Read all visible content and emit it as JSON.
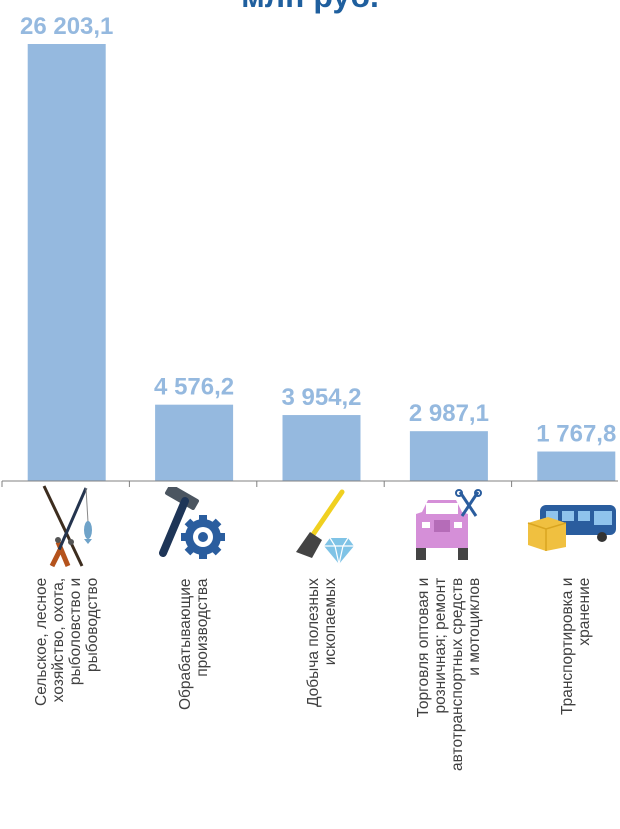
{
  "title": "млн руб.",
  "chart_data": {
    "type": "bar",
    "title": "млн руб.",
    "categories": [
      [
        "Сельское, лесное",
        "хозяйство, охота,",
        "рыболовство и",
        "рыбоводство"
      ],
      [
        "Обрабатывающие",
        "производства"
      ],
      [
        "Добыча полезных",
        "ископаемых"
      ],
      [
        "Торговля оптовая и",
        "розничная; ремонт",
        "автотранспортных средств",
        "и мотоциклов"
      ],
      [
        "Транспортировка и",
        "хранение"
      ]
    ],
    "values": [
      26203.1,
      4576.2,
      3954.2,
      2987.1,
      1767.8
    ],
    "value_labels": [
      "26 203,1",
      "4 576,2",
      "3 954,2",
      "2 987,1",
      "1 767,8"
    ],
    "icons": [
      "fishing-rods-icon",
      "hammer-gear-icon",
      "shovel-diamond-icon",
      "car-tools-icon",
      "bus-box-icon"
    ],
    "ylim": [
      0,
      26203.1
    ],
    "grid": false,
    "legend": "none",
    "colors": {
      "bar": "#95b9df",
      "value_label": "#95b9df",
      "axis": "#808080",
      "category_label": "#404040",
      "title": "#1f5f9e"
    }
  }
}
